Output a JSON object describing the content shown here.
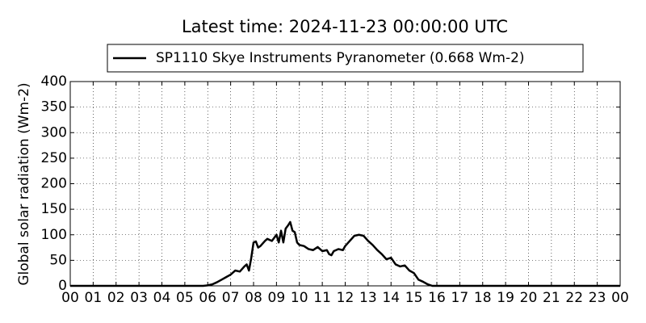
{
  "chart_data": {
    "type": "line",
    "title": "Latest time: 2024-11-23 00:00:00 UTC",
    "y_label": "Global solar radiation (Wm-2)",
    "x": [
      0,
      5.8,
      6.0,
      6.2,
      6.4,
      6.6,
      6.8,
      7.0,
      7.2,
      7.4,
      7.6,
      7.7,
      7.8,
      7.9,
      8.0,
      8.1,
      8.2,
      8.3,
      8.5,
      8.6,
      8.8,
      9.0,
      9.1,
      9.2,
      9.3,
      9.4,
      9.5,
      9.6,
      9.7,
      9.8,
      9.9,
      10.0,
      10.2,
      10.4,
      10.6,
      10.8,
      11.0,
      11.2,
      11.3,
      11.4,
      11.5,
      11.7,
      11.9,
      12.0,
      12.2,
      12.4,
      12.6,
      12.8,
      13.0,
      13.2,
      13.4,
      13.6,
      13.8,
      14.0,
      14.2,
      14.4,
      14.6,
      14.8,
      15.0,
      15.2,
      15.4,
      15.6,
      15.8,
      24
    ],
    "series": [
      {
        "name": "SP1110 Skye Instruments Pyranometer (0.668 Wm-2)",
        "color": "#000000",
        "values": [
          0,
          0,
          1,
          3,
          7,
          12,
          17,
          22,
          30,
          28,
          38,
          42,
          30,
          55,
          85,
          87,
          75,
          78,
          88,
          92,
          88,
          100,
          85,
          108,
          85,
          112,
          118,
          125,
          108,
          105,
          85,
          80,
          78,
          72,
          70,
          76,
          68,
          70,
          62,
          60,
          68,
          72,
          70,
          78,
          88,
          98,
          100,
          98,
          88,
          80,
          70,
          62,
          52,
          55,
          42,
          38,
          40,
          30,
          25,
          12,
          8,
          3,
          0,
          0
        ]
      }
    ],
    "xlim": [
      0,
      24
    ],
    "ylim": [
      0,
      400
    ],
    "xticks": [
      {
        "value": 0,
        "label": "00"
      },
      {
        "value": 1,
        "label": "01"
      },
      {
        "value": 2,
        "label": "02"
      },
      {
        "value": 3,
        "label": "03"
      },
      {
        "value": 4,
        "label": "04"
      },
      {
        "value": 5,
        "label": "05"
      },
      {
        "value": 6,
        "label": "06"
      },
      {
        "value": 7,
        "label": "07"
      },
      {
        "value": 8,
        "label": "08"
      },
      {
        "value": 9,
        "label": "09"
      },
      10,
      11,
      12,
      13,
      14,
      15,
      16,
      17,
      18,
      19,
      20,
      21,
      22,
      23,
      {
        "value": 24,
        "label": "00"
      }
    ],
    "yticks": [
      0,
      50,
      100,
      150,
      200,
      250,
      300,
      350,
      400
    ],
    "grid": true
  }
}
